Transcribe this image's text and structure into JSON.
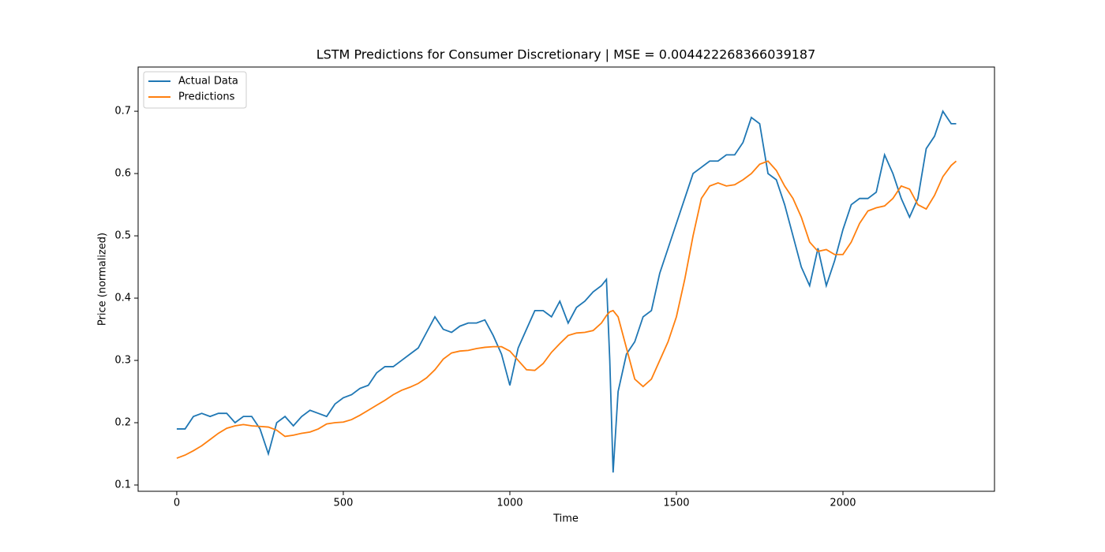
{
  "chart_data": {
    "type": "line",
    "title": "LSTM Predictions for Consumer Discretionary | MSE = 0.004422268366039187",
    "xlabel": "Time",
    "ylabel": "Price (normalized)",
    "x": [
      0,
      25,
      50,
      75,
      100,
      125,
      150,
      175,
      200,
      225,
      250,
      275,
      300,
      325,
      350,
      375,
      400,
      425,
      450,
      475,
      500,
      525,
      550,
      575,
      600,
      625,
      650,
      675,
      700,
      725,
      750,
      775,
      800,
      825,
      850,
      875,
      900,
      925,
      950,
      975,
      1000,
      1025,
      1050,
      1075,
      1100,
      1125,
      1150,
      1175,
      1200,
      1225,
      1250,
      1275,
      1290,
      1300,
      1310,
      1325,
      1350,
      1375,
      1400,
      1425,
      1450,
      1475,
      1500,
      1525,
      1550,
      1575,
      1600,
      1625,
      1650,
      1675,
      1700,
      1725,
      1750,
      1775,
      1800,
      1825,
      1850,
      1875,
      1900,
      1925,
      1950,
      1975,
      2000,
      2025,
      2050,
      2075,
      2100,
      2125,
      2150,
      2175,
      2200,
      2225,
      2250,
      2275,
      2300,
      2325,
      2340
    ],
    "series": [
      {
        "name": "Actual Data",
        "color": "#1f77b4",
        "values": [
          0.19,
          0.19,
          0.21,
          0.215,
          0.21,
          0.215,
          0.215,
          0.2,
          0.21,
          0.21,
          0.19,
          0.15,
          0.2,
          0.21,
          0.195,
          0.21,
          0.22,
          0.215,
          0.21,
          0.23,
          0.24,
          0.245,
          0.255,
          0.26,
          0.28,
          0.29,
          0.29,
          0.3,
          0.31,
          0.32,
          0.345,
          0.37,
          0.35,
          0.345,
          0.355,
          0.36,
          0.36,
          0.365,
          0.34,
          0.31,
          0.26,
          0.32,
          0.35,
          0.38,
          0.38,
          0.37,
          0.395,
          0.36,
          0.385,
          0.395,
          0.41,
          0.42,
          0.43,
          0.3,
          0.12,
          0.25,
          0.31,
          0.33,
          0.37,
          0.38,
          0.44,
          0.48,
          0.52,
          0.56,
          0.6,
          0.61,
          0.62,
          0.62,
          0.63,
          0.63,
          0.65,
          0.69,
          0.68,
          0.6,
          0.59,
          0.55,
          0.5,
          0.45,
          0.42,
          0.48,
          0.42,
          0.46,
          0.51,
          0.55,
          0.56,
          0.56,
          0.57,
          0.63,
          0.6,
          0.56,
          0.53,
          0.56,
          0.64,
          0.66,
          0.7,
          0.68,
          0.68
        ]
      },
      {
        "name": "Predictions",
        "color": "#ff7f0e",
        "values": [
          0.143,
          0.148,
          0.155,
          0.163,
          0.173,
          0.183,
          0.191,
          0.195,
          0.197,
          0.195,
          0.194,
          0.193,
          0.188,
          0.178,
          0.18,
          0.183,
          0.185,
          0.19,
          0.198,
          0.2,
          0.201,
          0.205,
          0.212,
          0.22,
          0.228,
          0.236,
          0.245,
          0.252,
          0.257,
          0.263,
          0.272,
          0.285,
          0.302,
          0.312,
          0.315,
          0.316,
          0.319,
          0.321,
          0.322,
          0.322,
          0.315,
          0.3,
          0.285,
          0.284,
          0.295,
          0.313,
          0.327,
          0.34,
          0.344,
          0.345,
          0.348,
          0.36,
          0.372,
          0.378,
          0.38,
          0.37,
          0.32,
          0.27,
          0.258,
          0.27,
          0.3,
          0.33,
          0.37,
          0.43,
          0.5,
          0.56,
          0.58,
          0.585,
          0.58,
          0.582,
          0.59,
          0.6,
          0.615,
          0.62,
          0.605,
          0.58,
          0.56,
          0.53,
          0.49,
          0.475,
          0.478,
          0.47,
          0.47,
          0.49,
          0.52,
          0.54,
          0.545,
          0.548,
          0.56,
          0.58,
          0.575,
          0.55,
          0.543,
          0.565,
          0.595,
          0.613,
          0.62
        ]
      }
    ],
    "xlim": [
      -116,
      2455
    ],
    "ylim": [
      0.0899,
      0.771
    ],
    "xticks": [
      0,
      500,
      1000,
      1500,
      2000
    ],
    "yticks": [
      0.1,
      0.2,
      0.3,
      0.4,
      0.5,
      0.6,
      0.7
    ],
    "legend": "upper left"
  }
}
